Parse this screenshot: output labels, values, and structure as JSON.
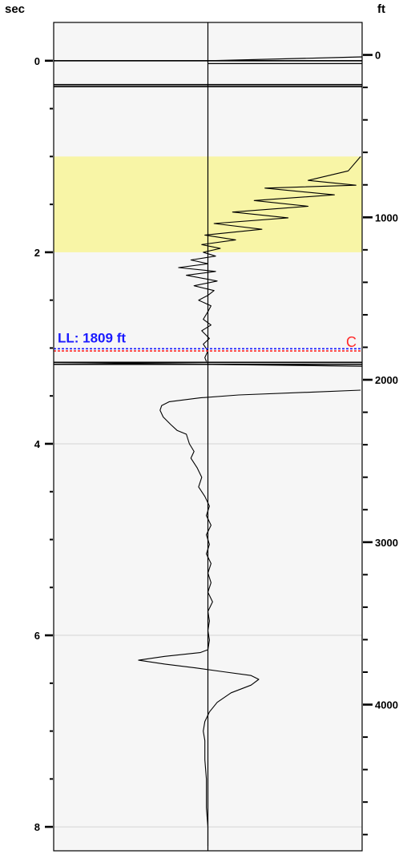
{
  "chart_data": {
    "type": "line",
    "left_axis": {
      "title": "sec",
      "ticks": [
        "0",
        "2",
        "4",
        "6",
        "8"
      ],
      "range": [
        -0.4,
        8.25
      ]
    },
    "right_axis": {
      "title": "ft",
      "ticks": [
        "0",
        "1000",
        "2000",
        "3000",
        "4000"
      ],
      "range": [
        -200,
        4900
      ]
    },
    "highlight_band": {
      "from_sec": 1.0,
      "to_sec": 2.0,
      "color": "#f8f5a6"
    },
    "gridlines_sec": [
      4,
      6,
      8
    ],
    "bold_lines_sec": [
      0.0,
      0.25,
      0.27,
      3.15,
      3.17
    ],
    "ll_marker": {
      "label": "LL: 1809 ft",
      "depth_ft": 1809,
      "color": "#1a1aff"
    },
    "c_marker": {
      "label": "C",
      "sec": 3.03,
      "color": "#ff2a2a"
    },
    "series": [
      {
        "points": [
          [
            1.0,
            0.99
          ],
          [
            1.15,
            0.91
          ],
          [
            1.25,
            0.65
          ],
          [
            1.3,
            0.96
          ],
          [
            1.33,
            0.37
          ],
          [
            1.4,
            0.82
          ],
          [
            1.46,
            0.3
          ],
          [
            1.52,
            0.65
          ],
          [
            1.58,
            0.16
          ],
          [
            1.64,
            0.52
          ],
          [
            1.7,
            0.04
          ],
          [
            1.76,
            0.35
          ],
          [
            1.82,
            -0.02
          ],
          [
            1.87,
            0.18
          ],
          [
            1.92,
            -0.04
          ],
          [
            1.96,
            0.08
          ],
          [
            2.0,
            -0.03
          ],
          [
            2.04,
            0.05
          ],
          [
            2.08,
            -0.11
          ],
          [
            2.12,
            0.0
          ],
          [
            2.16,
            -0.19
          ],
          [
            2.2,
            0.05
          ],
          [
            2.24,
            -0.14
          ],
          [
            2.3,
            0.06
          ],
          [
            2.35,
            -0.09
          ],
          [
            2.4,
            0.04
          ],
          [
            2.45,
            0.0
          ],
          [
            2.5,
            -0.06
          ],
          [
            2.56,
            0.02
          ],
          [
            2.62,
            0.0
          ],
          [
            2.7,
            -0.03
          ],
          [
            2.76,
            0.02
          ],
          [
            2.82,
            -0.04
          ],
          [
            2.9,
            0.01
          ],
          [
            2.96,
            -0.03
          ],
          [
            3.03,
            0.0
          ],
          [
            3.1,
            -0.02
          ],
          [
            3.14,
            -0.01
          ]
        ]
      },
      {
        "points": [
          [
            3.44,
            0.99
          ],
          [
            3.46,
            0.68
          ],
          [
            3.49,
            0.2
          ],
          [
            3.52,
            -0.05
          ],
          [
            3.56,
            -0.25
          ],
          [
            3.6,
            -0.3
          ],
          [
            3.65,
            -0.31
          ],
          [
            3.72,
            -0.29
          ],
          [
            3.8,
            -0.24
          ],
          [
            3.86,
            -0.2
          ],
          [
            3.9,
            -0.14
          ],
          [
            4.0,
            -0.12
          ],
          [
            4.08,
            -0.09
          ],
          [
            4.15,
            -0.11
          ],
          [
            4.25,
            -0.07
          ],
          [
            4.35,
            -0.04
          ],
          [
            4.45,
            -0.06
          ],
          [
            4.55,
            -0.02
          ],
          [
            4.65,
            0.01
          ],
          [
            4.75,
            -0.01
          ],
          [
            4.85,
            0.02
          ],
          [
            4.95,
            -0.01
          ],
          [
            5.05,
            0.01
          ],
          [
            5.15,
            -0.01
          ],
          [
            5.25,
            0.02
          ],
          [
            5.35,
            0.0
          ],
          [
            5.45,
            0.02
          ],
          [
            5.55,
            0.0
          ],
          [
            5.65,
            0.03
          ],
          [
            5.75,
            0.0
          ],
          [
            5.85,
            0.01
          ],
          [
            5.95,
            0.0
          ],
          [
            6.05,
            0.01
          ],
          [
            6.15,
            0.0
          ],
          [
            6.18,
            -0.05
          ],
          [
            6.22,
            -0.28
          ],
          [
            6.26,
            -0.45
          ],
          [
            6.3,
            -0.28
          ],
          [
            6.34,
            -0.08
          ],
          [
            6.38,
            0.1
          ],
          [
            6.42,
            0.28
          ],
          [
            6.46,
            0.33
          ],
          [
            6.52,
            0.28
          ],
          [
            6.6,
            0.15
          ],
          [
            6.7,
            0.06
          ],
          [
            6.8,
            0.01
          ],
          [
            6.9,
            -0.02
          ],
          [
            7.0,
            -0.03
          ],
          [
            7.1,
            -0.02
          ],
          [
            7.3,
            -0.02
          ],
          [
            7.5,
            -0.01
          ],
          [
            7.8,
            -0.01
          ],
          [
            8.0,
            0.0
          ],
          [
            8.2,
            0.0
          ]
        ]
      }
    ],
    "top_section_lines": [
      {
        "from": [
          0.0,
          0.0
        ],
        "to": [
          1.0,
          -0.04
        ]
      },
      {
        "from": [
          0.0,
          0.03
        ],
        "to": [
          1.0,
          0.03
        ]
      }
    ],
    "separator_line": {
      "from": [
        -1.0,
        3.15
      ],
      "to": [
        1.0,
        3.19
      ]
    }
  }
}
